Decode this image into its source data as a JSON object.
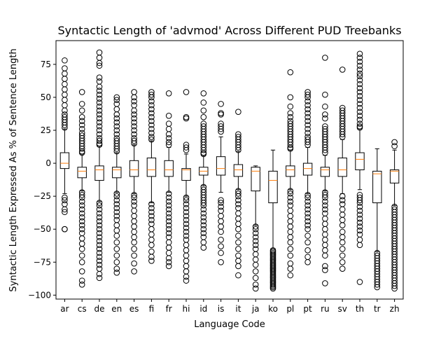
{
  "chart_data": {
    "type": "boxplot",
    "title": "Syntactic Length of 'advmod' Across Different PUD Treebanks",
    "xlabel": "Language Code",
    "ylabel": "Syntactic Length Expressed As % of Sentence Length",
    "ylim": [
      -103,
      93
    ],
    "yticks": [
      75,
      50,
      25,
      0,
      -25,
      -50,
      -75,
      -100
    ],
    "ytick_labels": [
      "75",
      "50",
      "25",
      "0",
      "−25",
      "−50",
      "−75",
      "−100"
    ],
    "grid": false,
    "median_color": "#ff7f0e",
    "categories": [
      "ar",
      "cs",
      "de",
      "en",
      "es",
      "fi",
      "fr",
      "hi",
      "id",
      "is",
      "it",
      "ja",
      "ko",
      "pl",
      "pt",
      "ru",
      "sv",
      "th",
      "tr",
      "zh"
    ],
    "boxes": [
      {
        "label": "ar",
        "whislo": -23,
        "q1": -4,
        "med": 0,
        "q3": 8,
        "whishi": 26,
        "fliers": [
          78,
          72,
          68,
          64,
          60,
          56,
          52,
          48,
          44,
          40,
          37,
          35,
          33,
          31,
          29,
          27,
          -26,
          -28,
          -31,
          -35,
          -37,
          -50,
          -50
        ]
      },
      {
        "label": "cs",
        "whislo": -21,
        "q1": -11,
        "med": -6,
        "q3": -3,
        "whishi": 7,
        "fliers": [
          54,
          45,
          40,
          35,
          32,
          29,
          26,
          23,
          21,
          19,
          17,
          15,
          13,
          11,
          9,
          8,
          -22,
          -24,
          -26,
          -29,
          -32,
          -35,
          -38,
          -41,
          -44,
          -47,
          -50,
          -53,
          -57,
          -61,
          -65,
          -70,
          -75,
          -82,
          -89,
          -92
        ]
      },
      {
        "label": "de",
        "whislo": -29,
        "q1": -13,
        "med": -5,
        "q3": -2,
        "whishi": 13,
        "fliers": [
          84,
          80,
          76,
          74,
          65,
          62,
          58,
          55,
          52,
          49,
          46,
          43,
          40,
          37,
          34,
          31,
          28,
          25,
          22,
          19,
          17,
          15,
          14,
          -30,
          -32,
          -35,
          -38,
          -41,
          -44,
          -47,
          -50,
          -53,
          -56,
          -59,
          -62,
          -65,
          -68,
          -71,
          -74,
          -77,
          -80,
          -84,
          -87
        ]
      },
      {
        "label": "en",
        "whislo": -22,
        "q1": -11,
        "med": -5,
        "q3": -3,
        "whishi": 8,
        "fliers": [
          50,
          48,
          45,
          41,
          37,
          34,
          31,
          28,
          25,
          22,
          19,
          17,
          15,
          13,
          11,
          9,
          -23,
          -25,
          -28,
          -31,
          -34,
          -37,
          -40,
          -43,
          -47,
          -51,
          -55,
          -60,
          -65,
          -70,
          -75,
          -80,
          -83
        ]
      },
      {
        "label": "es",
        "whislo": -23,
        "q1": -10,
        "med": -5,
        "q3": 2,
        "whishi": 14,
        "fliers": [
          54,
          50,
          47,
          44,
          40,
          37,
          34,
          31,
          28,
          25,
          22,
          19,
          17,
          15,
          -24,
          -26,
          -29,
          -32,
          -36,
          -40,
          -44,
          -48,
          -52,
          -56,
          -60,
          -65,
          -70,
          -76,
          -82
        ]
      },
      {
        "label": "fi",
        "whislo": -30,
        "q1": -10,
        "med": -5,
        "q3": 4,
        "whishi": 17,
        "fliers": [
          54,
          52,
          50,
          47,
          44,
          41,
          38,
          35,
          32,
          29,
          26,
          23,
          20,
          18,
          -31,
          -34,
          -37,
          -40,
          -43,
          -46,
          -50,
          -54,
          -58,
          -62,
          -67,
          -71,
          -74
        ]
      },
      {
        "label": "fr",
        "whislo": -22,
        "q1": -10,
        "med": -5,
        "q3": 2,
        "whishi": 12,
        "fliers": [
          53,
          36,
          30,
          26,
          22,
          19,
          16,
          14,
          -23,
          -26,
          -29,
          -32,
          -35,
          -38,
          -41,
          -44,
          -47,
          -50,
          -53,
          -56,
          -60,
          -64,
          -68,
          -72,
          -75,
          -78
        ]
      },
      {
        "label": "hi",
        "whislo": -25,
        "q1": -13,
        "med": -5,
        "q3": -4,
        "whishi": 7,
        "fliers": [
          54,
          35,
          34,
          14,
          12,
          10,
          -26,
          -28,
          -31,
          -34,
          -37,
          -40,
          -43,
          -46,
          -49,
          -52,
          -55,
          -58,
          -62,
          -66,
          -70,
          -74,
          -78,
          -82,
          -86,
          -89
        ]
      },
      {
        "label": "id",
        "whislo": -17,
        "q1": -9,
        "med": -6,
        "q3": -3,
        "whishi": 6,
        "fliers": [
          53,
          46,
          40,
          35,
          30,
          28,
          26,
          24,
          22,
          20,
          18,
          16,
          14,
          12,
          10,
          8,
          7,
          -18,
          -20,
          -22,
          -24,
          -26,
          -28,
          -30,
          -32,
          -35,
          -38,
          -41,
          -44,
          -47,
          -50,
          -53,
          -56,
          -60,
          -64
        ]
      },
      {
        "label": "is",
        "whislo": -22,
        "q1": -9,
        "med": -4,
        "q3": 5,
        "whishi": 20,
        "fliers": [
          45,
          38,
          37,
          30,
          28,
          26,
          24,
          -28,
          -30,
          -33,
          -36,
          -40,
          -44,
          -48,
          -52,
          -58,
          -63,
          -68,
          -75
        ]
      },
      {
        "label": "it",
        "whislo": -20,
        "q1": -10,
        "med": -5,
        "q3": -1,
        "whishi": 9,
        "fliers": [
          39,
          22,
          20,
          18,
          16,
          14,
          12,
          10,
          -21,
          -23,
          -25,
          -28,
          -31,
          -34,
          -38,
          -42,
          -46,
          -50,
          -55,
          -60,
          -65,
          -70,
          -74,
          -78,
          -85
        ]
      },
      {
        "label": "ja",
        "whislo": -47,
        "q1": -21,
        "med": -6,
        "q3": -3,
        "whishi": -2,
        "fliers": [
          -48,
          -50,
          -53,
          -56,
          -59,
          -62,
          -65,
          -69,
          -73,
          -77,
          -82,
          -87,
          -92,
          -95
        ]
      },
      {
        "label": "ko",
        "whislo": -65,
        "q1": -30,
        "med": -13,
        "q3": -6,
        "whishi": 10,
        "fliers": [
          -66,
          -67,
          -68,
          -69,
          -70,
          -71,
          -72,
          -73,
          -74,
          -75,
          -76,
          -77,
          -78,
          -79,
          -80,
          -81,
          -82,
          -83,
          -84,
          -85,
          -86,
          -87,
          -88,
          -89,
          -90,
          -91,
          -92,
          -93,
          -94,
          -95
        ]
      },
      {
        "label": "pl",
        "whislo": -20,
        "q1": -10,
        "med": -5,
        "q3": -2,
        "whishi": 10,
        "fliers": [
          69,
          50,
          43,
          38,
          35,
          32,
          30,
          28,
          26,
          24,
          22,
          20,
          18,
          16,
          14,
          12,
          11,
          -21,
          -23,
          -26,
          -29,
          -32,
          -36,
          -40,
          -44,
          -48,
          -52,
          -56,
          -60,
          -65,
          -70,
          -76,
          -80,
          -85
        ]
      },
      {
        "label": "pt",
        "whislo": -23,
        "q1": -9,
        "med": -4,
        "q3": 0,
        "whishi": 12,
        "fliers": [
          54,
          52,
          50,
          47,
          44,
          41,
          38,
          35,
          32,
          29,
          26,
          23,
          20,
          18,
          16,
          14,
          -24,
          -26,
          -29,
          -32,
          -35,
          -38,
          -41,
          -44,
          -47,
          -50,
          -55,
          -60,
          -66,
          -71,
          -75
        ]
      },
      {
        "label": "ru",
        "whislo": -21,
        "q1": -10,
        "med": -5,
        "q3": -3,
        "whishi": 6,
        "fliers": [
          80,
          52,
          43,
          37,
          34,
          28,
          26,
          24,
          22,
          20,
          18,
          16,
          14,
          12,
          10,
          8,
          -22,
          -24,
          -26,
          -29,
          -32,
          -35,
          -38,
          -42,
          -46,
          -50,
          -54,
          -58,
          -62,
          -66,
          -70,
          -78,
          -81,
          -91
        ]
      },
      {
        "label": "sv",
        "whislo": -23,
        "q1": -10,
        "med": -5,
        "q3": 4,
        "whishi": 18,
        "fliers": [
          71,
          42,
          40,
          38,
          36,
          34,
          32,
          30,
          28,
          26,
          24,
          22,
          20,
          -25,
          -28,
          -31,
          -35,
          -39,
          -43,
          -47,
          -52,
          -56,
          -60,
          -65,
          -70,
          -75,
          -80
        ]
      },
      {
        "label": "th",
        "whislo": -20,
        "q1": -5,
        "med": 3,
        "q3": 8,
        "whishi": 26,
        "fliers": [
          83,
          80,
          77,
          74,
          71,
          68,
          66,
          63,
          60,
          57,
          54,
          51,
          48,
          45,
          42,
          39,
          36,
          33,
          30,
          28,
          27,
          -24,
          -26,
          -28,
          -30,
          -33,
          -36,
          -39,
          -42,
          -45,
          -48,
          -51,
          -54,
          -58,
          -62,
          -90
        ]
      },
      {
        "label": "tr",
        "whislo": -67,
        "q1": -30,
        "med": -8,
        "q3": -6,
        "whishi": 11,
        "fliers": [
          -68,
          -70,
          -72,
          -74,
          -76,
          -78,
          -80,
          -82,
          -84,
          -86,
          -88,
          -90,
          -92,
          -94
        ]
      },
      {
        "label": "zh",
        "whislo": -32,
        "q1": -15,
        "med": -6,
        "q3": -5,
        "whishi": 10,
        "fliers": [
          16,
          13,
          -33,
          -35,
          -37,
          -39,
          -41,
          -43,
          -45,
          -47,
          -49,
          -51,
          -53,
          -55,
          -57,
          -59,
          -61,
          -63,
          -65,
          -67,
          -69,
          -71,
          -73,
          -75,
          -77,
          -79,
          -81,
          -83,
          -85,
          -87,
          -89,
          -91,
          -93,
          -95
        ]
      }
    ]
  }
}
